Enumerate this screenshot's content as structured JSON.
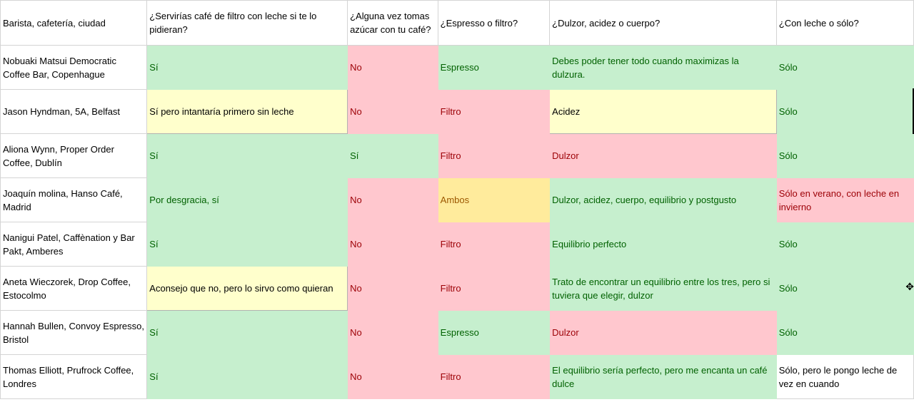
{
  "headers": [
    "Barista, cafetería, ciudad",
    "¿Servirías café de filtro con leche si te lo pidieran?",
    "¿Alguna vez tomas azúcar con tu café?",
    "¿Espresso o filtro?",
    "¿Dulzor, acidez o cuerpo?",
    "¿Con leche o sólo?"
  ],
  "rows": [
    {
      "cells": [
        {
          "text": "Nobuaki Matsui Democratic Coffee Bar, Copenhague",
          "style": "plain"
        },
        {
          "text": "Sí",
          "style": "green"
        },
        {
          "text": "No",
          "style": "red"
        },
        {
          "text": "Espresso",
          "style": "green"
        },
        {
          "text": "Debes poder tener todo cuando maximizas la dulzura.",
          "style": "green"
        },
        {
          "text": "Sólo",
          "style": "green"
        }
      ]
    },
    {
      "cells": [
        {
          "text": "Jason Hyndman, 5A, Belfast",
          "style": "plain"
        },
        {
          "text": "Sí pero intantaría primero sin leche",
          "style": "yellow"
        },
        {
          "text": "No",
          "style": "red"
        },
        {
          "text": "Filtro",
          "style": "red"
        },
        {
          "text": "Acidez",
          "style": "yellow"
        },
        {
          "text": "Sólo",
          "style": "green"
        }
      ]
    },
    {
      "cells": [
        {
          "text": "Aliona Wynn, Proper Order Coffee, Dublín",
          "style": "plain"
        },
        {
          "text": "Sí",
          "style": "green"
        },
        {
          "text": "Sí",
          "style": "green"
        },
        {
          "text": "Filtro",
          "style": "red"
        },
        {
          "text": "Dulzor",
          "style": "red"
        },
        {
          "text": "Sólo",
          "style": "green"
        }
      ]
    },
    {
      "cells": [
        {
          "text": "Joaquín molina, Hanso Café, Madrid",
          "style": "plain"
        },
        {
          "text": "Por desgracia, sí",
          "style": "green"
        },
        {
          "text": "No",
          "style": "red"
        },
        {
          "text": "Ambos",
          "style": "amber"
        },
        {
          "text": "Dulzor, acidez, cuerpo, equilibrio y postgusto",
          "style": "green"
        },
        {
          "text": "Sólo en verano, con leche en invierno",
          "style": "red"
        }
      ]
    },
    {
      "cells": [
        {
          "text": "Nanigui Patel, Caffènation y Bar Pakt, Amberes",
          "style": "plain"
        },
        {
          "text": "Sí",
          "style": "green"
        },
        {
          "text": "No",
          "style": "red"
        },
        {
          "text": "Filtro",
          "style": "red"
        },
        {
          "text": "Equilibrio perfecto",
          "style": "green"
        },
        {
          "text": "Sólo",
          "style": "green"
        }
      ]
    },
    {
      "cells": [
        {
          "text": "Aneta Wieczorek, Drop Coffee, Estocolmo",
          "style": "plain"
        },
        {
          "text": "Aconsejo que no, pero lo sirvo como quieran",
          "style": "yellow"
        },
        {
          "text": "No",
          "style": "red"
        },
        {
          "text": "Filtro",
          "style": "red"
        },
        {
          "text": "Trato de encontrar un equilibrio entre los tres, pero si tuviera que elegir, dulzor",
          "style": "green"
        },
        {
          "text": "Sólo",
          "style": "green"
        }
      ]
    },
    {
      "cells": [
        {
          "text": "Hannah Bullen, Convoy Espresso, Bristol",
          "style": "plain"
        },
        {
          "text": "Sí",
          "style": "green"
        },
        {
          "text": "No",
          "style": "red"
        },
        {
          "text": "Espresso",
          "style": "green"
        },
        {
          "text": "Dulzor",
          "style": "red"
        },
        {
          "text": "Sólo",
          "style": "green"
        }
      ]
    },
    {
      "cells": [
        {
          "text": "Thomas Elliott, Prufrock Coffee, Londres",
          "style": "plain"
        },
        {
          "text": "Sí",
          "style": "green"
        },
        {
          "text": "No",
          "style": "red"
        },
        {
          "text": "Filtro",
          "style": "red"
        },
        {
          "text": "El equilibrio sería perfecto, pero me encanta un café dulce",
          "style": "green"
        },
        {
          "text": "Sólo, pero le pongo leche de vez en cuando",
          "style": "plain"
        }
      ]
    }
  ],
  "colors": {
    "green_fill": "#c6efce",
    "green_text": "#006100",
    "red_fill": "#ffc7ce",
    "red_text": "#9c0006",
    "yellow_fill": "#ffffcc",
    "amber_fill": "#ffeb9c",
    "amber_text": "#9c5700"
  },
  "icons": [
    "move-cursor-icon"
  ]
}
